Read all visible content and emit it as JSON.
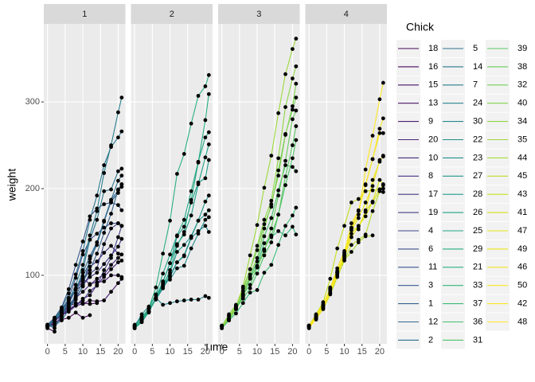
{
  "chart_data": {
    "type": "line",
    "x_label": "Time",
    "y_label": "weight",
    "legend_title": "Chick",
    "x": [
      0,
      2,
      4,
      6,
      8,
      10,
      12,
      14,
      16,
      18,
      20,
      21
    ],
    "xlim": [
      -1.05,
      22.05
    ],
    "xticks": [
      0,
      5,
      10,
      15,
      20
    ],
    "ylim": [
      21,
      390
    ],
    "yticks": [
      100,
      200,
      300
    ],
    "grid": true,
    "point_color": "#000000",
    "facets": [
      {
        "title": "1",
        "series": [
          {
            "name": "18",
            "color": "#440154",
            "values": [
              39,
              35,
              null,
              null,
              null,
              null,
              null,
              null,
              null,
              null,
              null,
              null
            ]
          },
          {
            "name": "16",
            "color": "#46085c",
            "values": [
              41,
              45,
              49,
              51,
              57,
              51,
              54,
              null,
              null,
              null,
              null,
              null
            ]
          },
          {
            "name": "15",
            "color": "#471063",
            "values": [
              41,
              49,
              56,
              64,
              68,
              68,
              67,
              68,
              null,
              null,
              null,
              null
            ]
          },
          {
            "name": "13",
            "color": "#481769",
            "values": [
              41,
              48,
              53,
              60,
              65,
              67,
              71,
              70,
              71,
              81,
              91,
              96
            ]
          },
          {
            "name": "9",
            "color": "#481d6f",
            "values": [
              42,
              51,
              59,
              68,
              85,
              96,
              90,
              92,
              93,
              100,
              100,
              98
            ]
          },
          {
            "name": "20",
            "color": "#482475",
            "values": [
              41,
              47,
              54,
              58,
              65,
              73,
              77,
              89,
              98,
              107,
              115,
              117
            ]
          },
          {
            "name": "10",
            "color": "#472a7a",
            "values": [
              41,
              44,
              52,
              63,
              74,
              81,
              89,
              96,
              101,
              112,
              120,
              124
            ]
          },
          {
            "name": "8",
            "color": "#46307e",
            "values": [
              42,
              50,
              61,
              71,
              84,
              93,
              110,
              116,
              126,
              134,
              125,
              null
            ]
          },
          {
            "name": "17",
            "color": "#443983",
            "values": [
              42,
              51,
              61,
              72,
              83,
              89,
              98,
              103,
              113,
              123,
              133,
              142
            ]
          },
          {
            "name": "19",
            "color": "#424086",
            "values": [
              43,
              48,
              55,
              62,
              65,
              71,
              82,
              88,
              106,
              120,
              144,
              157
            ]
          },
          {
            "name": "4",
            "color": "#3f4788",
            "values": [
              42,
              49,
              56,
              67,
              74,
              87,
              102,
              108,
              136,
              154,
              160,
              157
            ]
          },
          {
            "name": "6",
            "color": "#3c4f8a",
            "values": [
              41,
              49,
              59,
              74,
              97,
              124,
              141,
              148,
              155,
              160,
              160,
              157
            ]
          },
          {
            "name": "11",
            "color": "#39558c",
            "values": [
              43,
              51,
              63,
              84,
              112,
              139,
              168,
              177,
              182,
              184,
              181,
              175
            ]
          },
          {
            "name": "3",
            "color": "#365c8d",
            "values": [
              43,
              39,
              55,
              67,
              84,
              99,
              115,
              138,
              163,
              187,
              198,
              202
            ]
          },
          {
            "name": "1",
            "color": "#33628d",
            "values": [
              42,
              51,
              59,
              64,
              76,
              93,
              106,
              125,
              149,
              171,
              199,
              205
            ]
          },
          {
            "name": "12",
            "color": "#31688e",
            "values": [
              41,
              49,
              56,
              62,
              72,
              88,
              119,
              135,
              162,
              185,
              195,
              205
            ]
          },
          {
            "name": "2",
            "color": "#2e6e8e",
            "values": [
              40,
              49,
              58,
              72,
              84,
              103,
              122,
              138,
              162,
              187,
              209,
              215
            ]
          },
          {
            "name": "5",
            "color": "#2c738e",
            "values": [
              41,
              42,
              48,
              60,
              79,
              106,
              141,
              164,
              197,
              199,
              220,
              223
            ]
          },
          {
            "name": "14",
            "color": "#2a788e",
            "values": [
              41,
              49,
              62,
              79,
              101,
              128,
              164,
              192,
              227,
              248,
              259,
              266
            ]
          },
          {
            "name": "7",
            "color": "#287d8e",
            "values": [
              41,
              49,
              57,
              71,
              89,
              112,
              146,
              174,
              218,
              250,
              288,
              305
            ]
          }
        ]
      },
      {
        "title": "2",
        "series": [
          {
            "name": "24",
            "color": "#26828e",
            "values": [
              42,
              52,
              58,
              74,
              66,
              68,
              70,
              71,
              72,
              72,
              76,
              74
            ]
          },
          {
            "name": "30",
            "color": "#24878e",
            "values": [
              42,
              48,
              59,
              72,
              85,
              98,
              115,
              122,
              143,
              151,
              157,
              150
            ]
          },
          {
            "name": "22",
            "color": "#228d8d",
            "values": [
              41,
              55,
              64,
              77,
              90,
              95,
              108,
              111,
              131,
              148,
              164,
              167
            ]
          },
          {
            "name": "23",
            "color": "#21918c",
            "values": [
              43,
              52,
              61,
              73,
              90,
              103,
              127,
              135,
              145,
              163,
              170,
              175
            ]
          },
          {
            "name": "27",
            "color": "#1f968b",
            "values": [
              39,
              46,
              58,
              73,
              87,
              100,
              115,
              123,
              144,
              163,
              185,
              192
            ]
          },
          {
            "name": "28",
            "color": "#1f9b8a",
            "values": [
              39,
              46,
              58,
              73,
              92,
              114,
              145,
              156,
              184,
              207,
              212,
              233
            ]
          },
          {
            "name": "26",
            "color": "#1fa088",
            "values": [
              42,
              48,
              57,
              74,
              93,
              114,
              136,
              147,
              169,
              205,
              236,
              251
            ]
          },
          {
            "name": "25",
            "color": "#21a685",
            "values": [
              40,
              49,
              62,
              78,
              102,
              124,
              146,
              164,
              197,
              231,
              259,
              265
            ]
          },
          {
            "name": "29",
            "color": "#25ab82",
            "values": [
              39,
              48,
              59,
              74,
              87,
              106,
              134,
              150,
              187,
              230,
              279,
              309
            ]
          },
          {
            "name": "21",
            "color": "#2ab07f",
            "values": [
              40,
              50,
              62,
              86,
              125,
              163,
              217,
              240,
              275,
              307,
              318,
              331
            ]
          }
        ]
      },
      {
        "title": "3",
        "series": [
          {
            "name": "33",
            "color": "#32b67a",
            "values": [
              39,
              50,
              63,
              77,
              96,
              111,
              137,
              144,
              151,
              146,
              156,
              147
            ]
          },
          {
            "name": "37",
            "color": "#3bbb75",
            "values": [
              41,
              48,
              56,
              68,
              80,
              83,
              103,
              112,
              135,
              157,
              169,
              178
            ]
          },
          {
            "name": "36",
            "color": "#44bf70",
            "values": [
              39,
              48,
              61,
              76,
              98,
              116,
              145,
              166,
              198,
              227,
              225,
              220
            ]
          },
          {
            "name": "31",
            "color": "#4fc46a",
            "values": [
              42,
              53,
              62,
              73,
              85,
              102,
              123,
              138,
              170,
              204,
              235,
              256
            ]
          },
          {
            "name": "39",
            "color": "#5ac864",
            "values": [
              42,
              50,
              61,
              78,
              89,
              109,
              130,
              146,
              170,
              214,
              250,
              272
            ]
          },
          {
            "name": "38",
            "color": "#67cc5c",
            "values": [
              41,
              49,
              61,
              74,
              98,
              109,
              128,
              154,
              192,
              232,
              280,
              290
            ]
          },
          {
            "name": "32",
            "color": "#73d056",
            "values": [
              41,
              49,
              65,
              82,
              107,
              129,
              159,
              179,
              221,
              263,
              291,
              305
            ]
          },
          {
            "name": "40",
            "color": "#81d34d",
            "values": [
              41,
              55,
              66,
              79,
              101,
              120,
              154,
              182,
              215,
              262,
              295,
              321
            ]
          },
          {
            "name": "34",
            "color": "#8ed645",
            "values": [
              41,
              49,
              63,
              85,
              107,
              134,
              164,
              186,
              235,
              294,
              327,
              341
            ]
          },
          {
            "name": "35",
            "color": "#9dd93b",
            "values": [
              41,
              53,
              64,
              87,
              123,
              158,
              201,
              238,
              287,
              332,
              361,
              373
            ]
          }
        ]
      },
      {
        "title": "4",
        "series": [
          {
            "name": "44",
            "color": "#abdc32",
            "values": [
              42,
              51,
              65,
              86,
              103,
              118,
              127,
              138,
              145,
              146,
              null,
              null
            ]
          },
          {
            "name": "45",
            "color": "#bade28",
            "values": [
              41,
              50,
              61,
              78,
              98,
              117,
              135,
              141,
              147,
              174,
              197,
              196
            ]
          },
          {
            "name": "43",
            "color": "#c8e020",
            "values": [
              42,
              55,
              69,
              96,
              131,
              157,
              184,
              188,
              197,
              198,
              199,
              200
            ]
          },
          {
            "name": "41",
            "color": "#d5e21a",
            "values": [
              42,
              51,
              66,
              85,
              103,
              124,
              155,
              153,
              175,
              184,
              199,
              204
            ]
          },
          {
            "name": "47",
            "color": "#e2e418",
            "values": [
              41,
              53,
              66,
              79,
              100,
              123,
              148,
              157,
              168,
              185,
              210,
              205
            ]
          },
          {
            "name": "49",
            "color": "#eae51a",
            "values": [
              40,
              53,
              64,
              85,
              108,
              128,
              152,
              166,
              184,
              203,
              233,
              237
            ]
          },
          {
            "name": "46",
            "color": "#f1e51d",
            "values": [
              40,
              52,
              62,
              82,
              101,
              120,
              144,
              156,
              173,
              210,
              231,
              238
            ]
          },
          {
            "name": "50",
            "color": "#f6e620",
            "values": [
              41,
              54,
              67,
              84,
              105,
              122,
              155,
              175,
              205,
              234,
              264,
              264
            ]
          },
          {
            "name": "42",
            "color": "#fbe723",
            "values": [
              42,
              49,
              63,
              84,
              103,
              126,
              160,
              174,
              204,
              234,
              269,
              281
            ]
          },
          {
            "name": "48",
            "color": "#fde725",
            "values": [
              39,
              50,
              62,
              80,
              104,
              125,
              154,
              170,
              222,
              261,
              303,
              322
            ]
          }
        ]
      }
    ]
  }
}
